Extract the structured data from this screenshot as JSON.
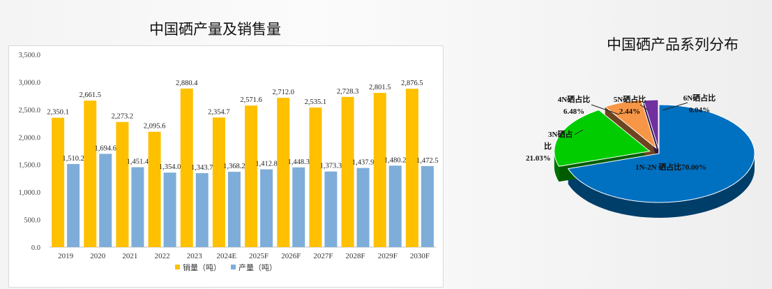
{
  "bar_title": "中国硒产量及销售量",
  "pie_title": "中国硒产品系列分布",
  "colors": {
    "sales": "#FFC000",
    "production": "#7EADD9"
  },
  "chart_data": [
    {
      "type": "bar",
      "title": "中国硒产量及销售量",
      "categories": [
        "2019",
        "2020",
        "2021",
        "2022",
        "2023",
        "2024E",
        "2025F",
        "2026F",
        "2027F",
        "2028F",
        "2029F",
        "2030F"
      ],
      "series": [
        {
          "name": "销量（吨）",
          "values": [
            2350.1,
            2661.5,
            2273.2,
            2095.6,
            2880.4,
            2354.7,
            2571.6,
            2712.0,
            2535.1,
            2728.3,
            2801.5,
            2876.5
          ],
          "labels": [
            "2,350.1",
            "2,661.5",
            "2,273.2",
            "2,095.6",
            "2,880.4",
            "2,354.7",
            "2,571.6",
            "2,712.0",
            "2,535.1",
            "2,728.3",
            "2,801.5",
            "2,876.5"
          ]
        },
        {
          "name": "产量（吨）",
          "values": [
            1510.2,
            1694.6,
            1451.4,
            1354.0,
            1343.7,
            1368.2,
            1412.8,
            1448.3,
            1373.3,
            1437.9,
            1480.2,
            1472.5
          ],
          "labels": [
            "1,510.2",
            "1,694.6",
            "1,451.4",
            "1,354.0",
            "1,343.7",
            "1,368.2",
            "1,412.8",
            "1,448.3",
            "1,373.3",
            "1,437.9",
            "1,480.2",
            "1,472.5"
          ]
        }
      ],
      "yticks": [
        "0.0",
        "500.0",
        "1,000.0",
        "1,500.0",
        "2,000.0",
        "2,500.0",
        "3,000.0",
        "3,500.0"
      ],
      "ylim": [
        0,
        3500
      ],
      "legend": "bottom",
      "grid": false
    },
    {
      "type": "pie",
      "title": "中国硒产品系列分布",
      "slices": [
        {
          "label": "1N-2N 硒占比70.00%",
          "value": 70.0,
          "color": "#0070C0"
        },
        {
          "label_lines": [
            "3N硒占",
            "比",
            "21.03%"
          ],
          "value": 21.03,
          "color": "#00CC00"
        },
        {
          "label_lines": [
            "4N硒占比",
            "6.48%"
          ],
          "value": 6.48,
          "color": "#F79646"
        },
        {
          "label_lines": [
            "5N硒占比",
            "2.44%"
          ],
          "value": 2.44,
          "color": "#7030A0"
        },
        {
          "label_lines": [
            "6N硒占比",
            "0.04%"
          ],
          "value": 0.04,
          "color": "#1F3864"
        }
      ],
      "style": "3d-exploded"
    }
  ]
}
